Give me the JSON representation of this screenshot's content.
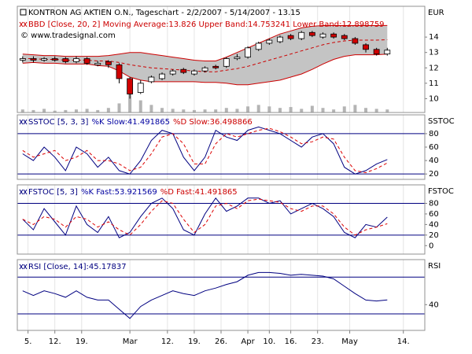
{
  "chart_data": [
    {
      "type": "candlestick",
      "title": "KONTRON AG AKTIEN O.N., Tageschart - 2/2/2007 - 5/14/2007 - 13.15",
      "legend": [
        {
          "text": "BBD [Close, 20, 2] Moving Average:13.826 Upper Band:14.753241 Lower Band:12.898759",
          "color": "#cc0000"
        }
      ],
      "source": "© www.tradesignal.com",
      "axis_label": "EUR",
      "x": [
        -1,
        1,
        3,
        5,
        7,
        9,
        11,
        13,
        15,
        17,
        19,
        21,
        23,
        25,
        27,
        29,
        31,
        33,
        35,
        37,
        39,
        41,
        43,
        45,
        47,
        49,
        51,
        53,
        55,
        57,
        59,
        61,
        63,
        65,
        67
      ],
      "xlim": [
        -2,
        74
      ],
      "open": [
        12.5,
        12.6,
        12.5,
        12.6,
        12.6,
        12.4,
        12.6,
        12.2,
        12.4,
        12.2,
        11.3,
        10.4,
        11.1,
        11.3,
        11.6,
        11.9,
        11.6,
        11.8,
        12.1,
        12.1,
        12.6,
        12.7,
        13.2,
        13.6,
        13.7,
        14.1,
        13.9,
        14.3,
        14.0,
        14.2,
        14.1,
        13.9,
        13.5,
        13.2,
        12.9
      ],
      "high": [
        12.75,
        12.75,
        12.7,
        12.75,
        12.7,
        12.75,
        12.7,
        12.45,
        12.5,
        12.3,
        11.4,
        11.2,
        11.5,
        11.7,
        11.9,
        12.0,
        11.9,
        12.1,
        12.2,
        12.7,
        12.9,
        13.4,
        13.7,
        13.9,
        14.1,
        14.2,
        14.4,
        14.4,
        14.3,
        14.3,
        14.2,
        14.0,
        13.6,
        13.3,
        13.3
      ],
      "low": [
        12.35,
        12.35,
        12.4,
        12.4,
        12.3,
        12.3,
        12.2,
        12.1,
        12.0,
        11.0,
        10.0,
        10.3,
        11.0,
        11.2,
        11.5,
        11.6,
        11.5,
        11.7,
        11.9,
        12.0,
        12.5,
        12.6,
        13.1,
        13.5,
        13.6,
        13.8,
        13.8,
        14.0,
        13.9,
        13.9,
        13.8,
        13.5,
        13.0,
        12.8,
        12.8
      ],
      "close": [
        12.6,
        12.5,
        12.6,
        12.5,
        12.4,
        12.6,
        12.3,
        12.3,
        12.2,
        11.3,
        10.3,
        11.0,
        11.4,
        11.6,
        11.8,
        11.7,
        11.8,
        12.0,
        12.0,
        12.6,
        12.7,
        13.3,
        13.6,
        13.8,
        14.0,
        13.9,
        14.3,
        14.1,
        14.2,
        14.0,
        13.9,
        13.6,
        13.2,
        12.9,
        13.15
      ],
      "up_color": "#ffffff",
      "down_color": "#d00000",
      "band_fill": "#c4c4c4",
      "series": [
        {
          "color": "#cc0000",
          "dash": false,
          "values": [
            12.9,
            12.85,
            12.8,
            12.8,
            12.75,
            12.75,
            12.75,
            12.75,
            12.8,
            12.9,
            13.0,
            13.0,
            12.9,
            12.8,
            12.7,
            12.6,
            12.5,
            12.45,
            12.45,
            12.7,
            13.0,
            13.3,
            13.6,
            13.9,
            14.2,
            14.4,
            14.6,
            14.7,
            14.75,
            14.75,
            14.75,
            14.75,
            14.75,
            14.75,
            14.753241
          ]
        },
        {
          "color": "#cc0000",
          "dash": false,
          "values": [
            12.3,
            12.35,
            12.3,
            12.3,
            12.25,
            12.25,
            12.25,
            12.15,
            12.1,
            11.8,
            11.4,
            11.2,
            11.1,
            11.1,
            11.1,
            11.1,
            11.1,
            11.05,
            11.05,
            11.0,
            10.9,
            10.9,
            11.0,
            11.1,
            11.2,
            11.4,
            11.6,
            11.9,
            12.25,
            12.55,
            12.75,
            12.85,
            12.85,
            12.85,
            12.898759
          ]
        },
        {
          "color": "#cc0000",
          "dash": true,
          "values": [
            12.6,
            12.6,
            12.55,
            12.55,
            12.5,
            12.5,
            12.5,
            12.45,
            12.45,
            12.35,
            12.2,
            12.1,
            12.0,
            11.95,
            11.9,
            11.85,
            11.8,
            11.75,
            11.75,
            11.85,
            11.95,
            12.1,
            12.3,
            12.5,
            12.7,
            12.9,
            13.1,
            13.3,
            13.5,
            13.65,
            13.75,
            13.8,
            13.8,
            13.8,
            13.826
          ]
        }
      ],
      "volume": [
        10,
        8,
        12,
        6,
        8,
        10,
        12,
        8,
        15,
        30,
        60,
        40,
        25,
        15,
        12,
        10,
        8,
        10,
        10,
        15,
        12,
        20,
        25,
        20,
        15,
        18,
        12,
        22,
        15,
        10,
        20,
        25,
        15,
        12,
        10
      ],
      "volume_ylim": [
        0,
        350
      ],
      "volume_color": "#b4b4b4",
      "ylim": [
        9.1,
        16
      ],
      "yticks": [
        10,
        11,
        12,
        13,
        14
      ],
      "grid": true
    },
    {
      "type": "line",
      "axis_label": "SSTOC",
      "legend": [
        {
          "text": "SSTOC [5, 3, 3]",
          "color": "#000080"
        },
        {
          "text": "%K Slow:41.491865",
          "color": "#0000a0"
        },
        {
          "text": "%D Slow:36.498866",
          "color": "#cc0000"
        }
      ],
      "series": [
        {
          "color": "#000080",
          "dash": false,
          "values": [
            50,
            40,
            60,
            45,
            25,
            60,
            50,
            30,
            45,
            25,
            20,
            40,
            70,
            85,
            80,
            45,
            25,
            45,
            85,
            75,
            70,
            85,
            90,
            85,
            80,
            70,
            60,
            75,
            80,
            65,
            30,
            20,
            25,
            35,
            41.491865
          ]
        },
        {
          "color": "#dd0000",
          "dash": true,
          "values": [
            55,
            45,
            50,
            55,
            40,
            45,
            55,
            40,
            40,
            35,
            25,
            30,
            50,
            75,
            80,
            65,
            35,
            35,
            65,
            80,
            75,
            80,
            85,
            88,
            83,
            75,
            65,
            68,
            75,
            72,
            45,
            25,
            22,
            28,
            36.498866
          ]
        }
      ],
      "reference_lines": [
        20,
        80
      ],
      "reference_color": "#000080",
      "ylim": [
        12,
        108
      ],
      "yticks": [
        20,
        40,
        60,
        80
      ],
      "grid": true
    },
    {
      "type": "line",
      "axis_label": "FSTOC",
      "legend": [
        {
          "text": "FSTOC [5, 3]",
          "color": "#000080"
        },
        {
          "text": "%K Fast:53.921569",
          "color": "#0000a0"
        },
        {
          "text": "%D Fast:41.491865",
          "color": "#cc0000"
        }
      ],
      "series": [
        {
          "color": "#000080",
          "dash": false,
          "values": [
            50,
            30,
            70,
            45,
            20,
            75,
            40,
            25,
            55,
            15,
            25,
            55,
            80,
            90,
            70,
            30,
            20,
            60,
            90,
            65,
            75,
            90,
            90,
            80,
            85,
            60,
            70,
            80,
            70,
            55,
            25,
            15,
            40,
            35,
            53.921569
          ]
        },
        {
          "color": "#dd0000",
          "dash": true,
          "values": [
            50,
            40,
            55,
            50,
            35,
            55,
            50,
            35,
            45,
            30,
            20,
            40,
            65,
            85,
            80,
            50,
            25,
            40,
            75,
            80,
            70,
            85,
            88,
            85,
            82,
            70,
            65,
            75,
            75,
            60,
            35,
            20,
            30,
            35,
            41.491865
          ]
        }
      ],
      "reference_lines": [
        20,
        80
      ],
      "reference_color": "#000080",
      "ylim": [
        -16,
        115
      ],
      "yticks": [
        0,
        20,
        40,
        60,
        80
      ],
      "grid": true
    },
    {
      "type": "line",
      "axis_label": "RSI",
      "legend": [
        {
          "text": "RSI [Close, 14]:45.17837",
          "color": "#000080"
        }
      ],
      "series": [
        {
          "color": "#000080",
          "dash": false,
          "values": [
            55,
            50,
            55,
            52,
            48,
            55,
            48,
            45,
            45,
            35,
            25,
            38,
            45,
            50,
            55,
            52,
            50,
            55,
            58,
            62,
            65,
            72,
            75,
            75,
            74,
            72,
            73,
            72,
            71,
            68,
            60,
            52,
            45,
            44,
            45.17837
          ]
        }
      ],
      "reference_lines": [
        30,
        70
      ],
      "reference_color": "#000080",
      "ylim": [
        12,
        89
      ],
      "yticks": [
        40
      ],
      "grid": true,
      "xticks": [
        {
          "value": 0,
          "label": "5."
        },
        {
          "value": 5,
          "label": "12."
        },
        {
          "value": 10,
          "label": "19."
        },
        {
          "value": 19,
          "label": "Mar"
        },
        {
          "value": 26,
          "label": "12."
        },
        {
          "value": 31,
          "label": "19."
        },
        {
          "value": 36,
          "label": "26."
        },
        {
          "value": 41,
          "label": "Apr"
        },
        {
          "value": 45,
          "label": "10."
        },
        {
          "value": 49,
          "label": "16."
        },
        {
          "value": 54,
          "label": "23."
        },
        {
          "value": 60,
          "label": "May"
        },
        {
          "value": 70,
          "label": "14."
        }
      ]
    }
  ]
}
